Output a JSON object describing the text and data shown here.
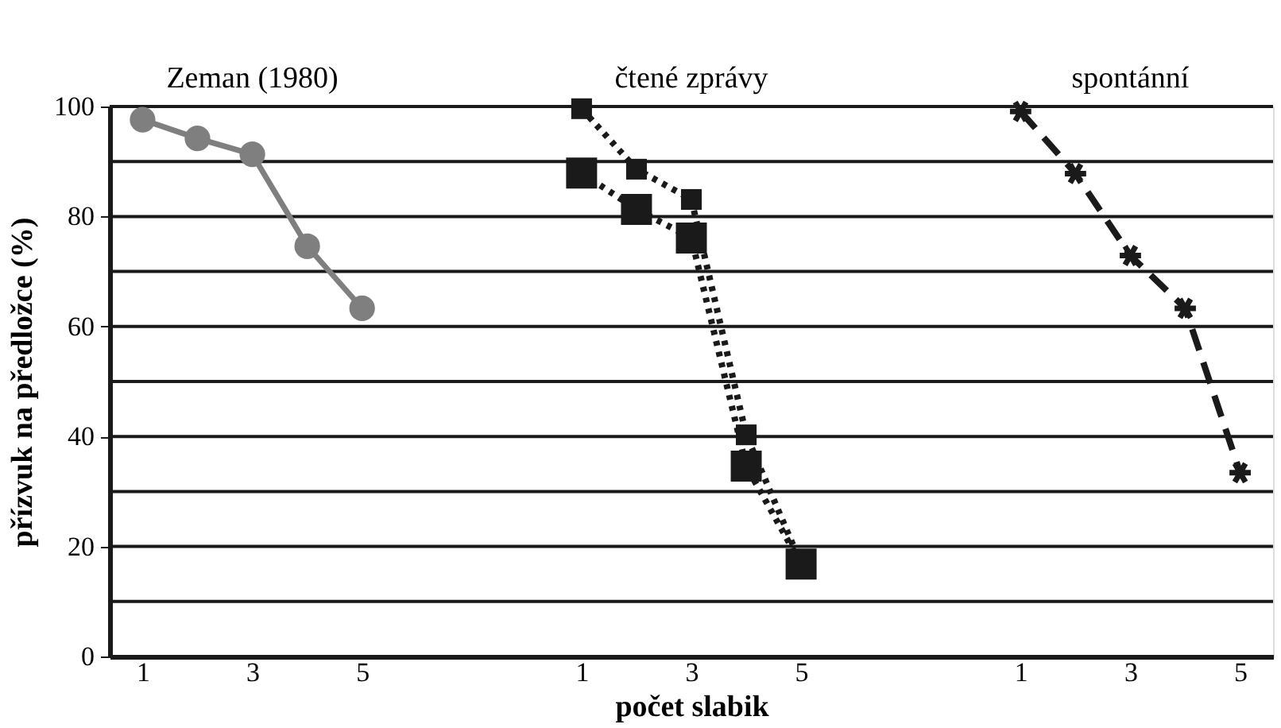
{
  "chart_data": {
    "type": "line",
    "xlabel": "počet slabik",
    "ylabel": "přízvuk na předložce (%)",
    "annotations": [
      "Zeman (1980)",
      "čtené zprávy",
      "spontánní"
    ],
    "categories": [
      "1",
      null,
      "3",
      null,
      "5",
      null,
      null,
      null,
      "1",
      null,
      "3",
      null,
      "5",
      null,
      null,
      null,
      "1",
      null,
      "3",
      null,
      "5"
    ],
    "series": [
      {
        "color": "#7f7f7f",
        "marker": "circle",
        "line_style": "solid",
        "values": [
          97.6,
          94.2,
          91.3,
          74.6,
          63.3,
          null,
          null,
          null,
          null,
          null,
          null,
          null,
          null,
          null,
          null,
          null,
          null,
          null,
          null,
          null,
          null
        ]
      },
      {
        "color": "#1a1a1a",
        "marker": "square",
        "line_style": "dotted",
        "values": [
          null,
          null,
          null,
          null,
          null,
          null,
          null,
          null,
          99.6,
          88.6,
          83.1,
          40.3,
          16.8,
          null,
          null,
          null,
          null,
          null,
          null,
          null,
          null
        ]
      },
      {
        "color": "#1a1a1a",
        "marker": "square",
        "line_style": "dotted",
        "values": [
          null,
          null,
          null,
          null,
          null,
          null,
          null,
          null,
          87.9,
          81.3,
          76.1,
          34.6,
          16.8,
          null,
          null,
          null,
          null,
          null,
          null,
          null,
          null
        ]
      },
      {
        "color": "#1a1a1a",
        "marker": "cross",
        "line_style": "dashed",
        "values": [
          null,
          null,
          null,
          null,
          null,
          null,
          null,
          null,
          null,
          null,
          null,
          null,
          null,
          null,
          null,
          null,
          99.1,
          87.8,
          72.9,
          63.3,
          33.4
        ]
      }
    ],
    "ylim": [
      0,
      100
    ],
    "yticks": [
      0,
      {
        "value": 10,
        "label": null
      },
      20,
      {
        "value": 30,
        "label": null
      },
      40,
      {
        "value": 50,
        "label": null
      },
      60,
      {
        "value": 70,
        "label": null
      },
      80,
      {
        "value": 90,
        "label": null
      },
      100
    ],
    "grid": "y"
  }
}
